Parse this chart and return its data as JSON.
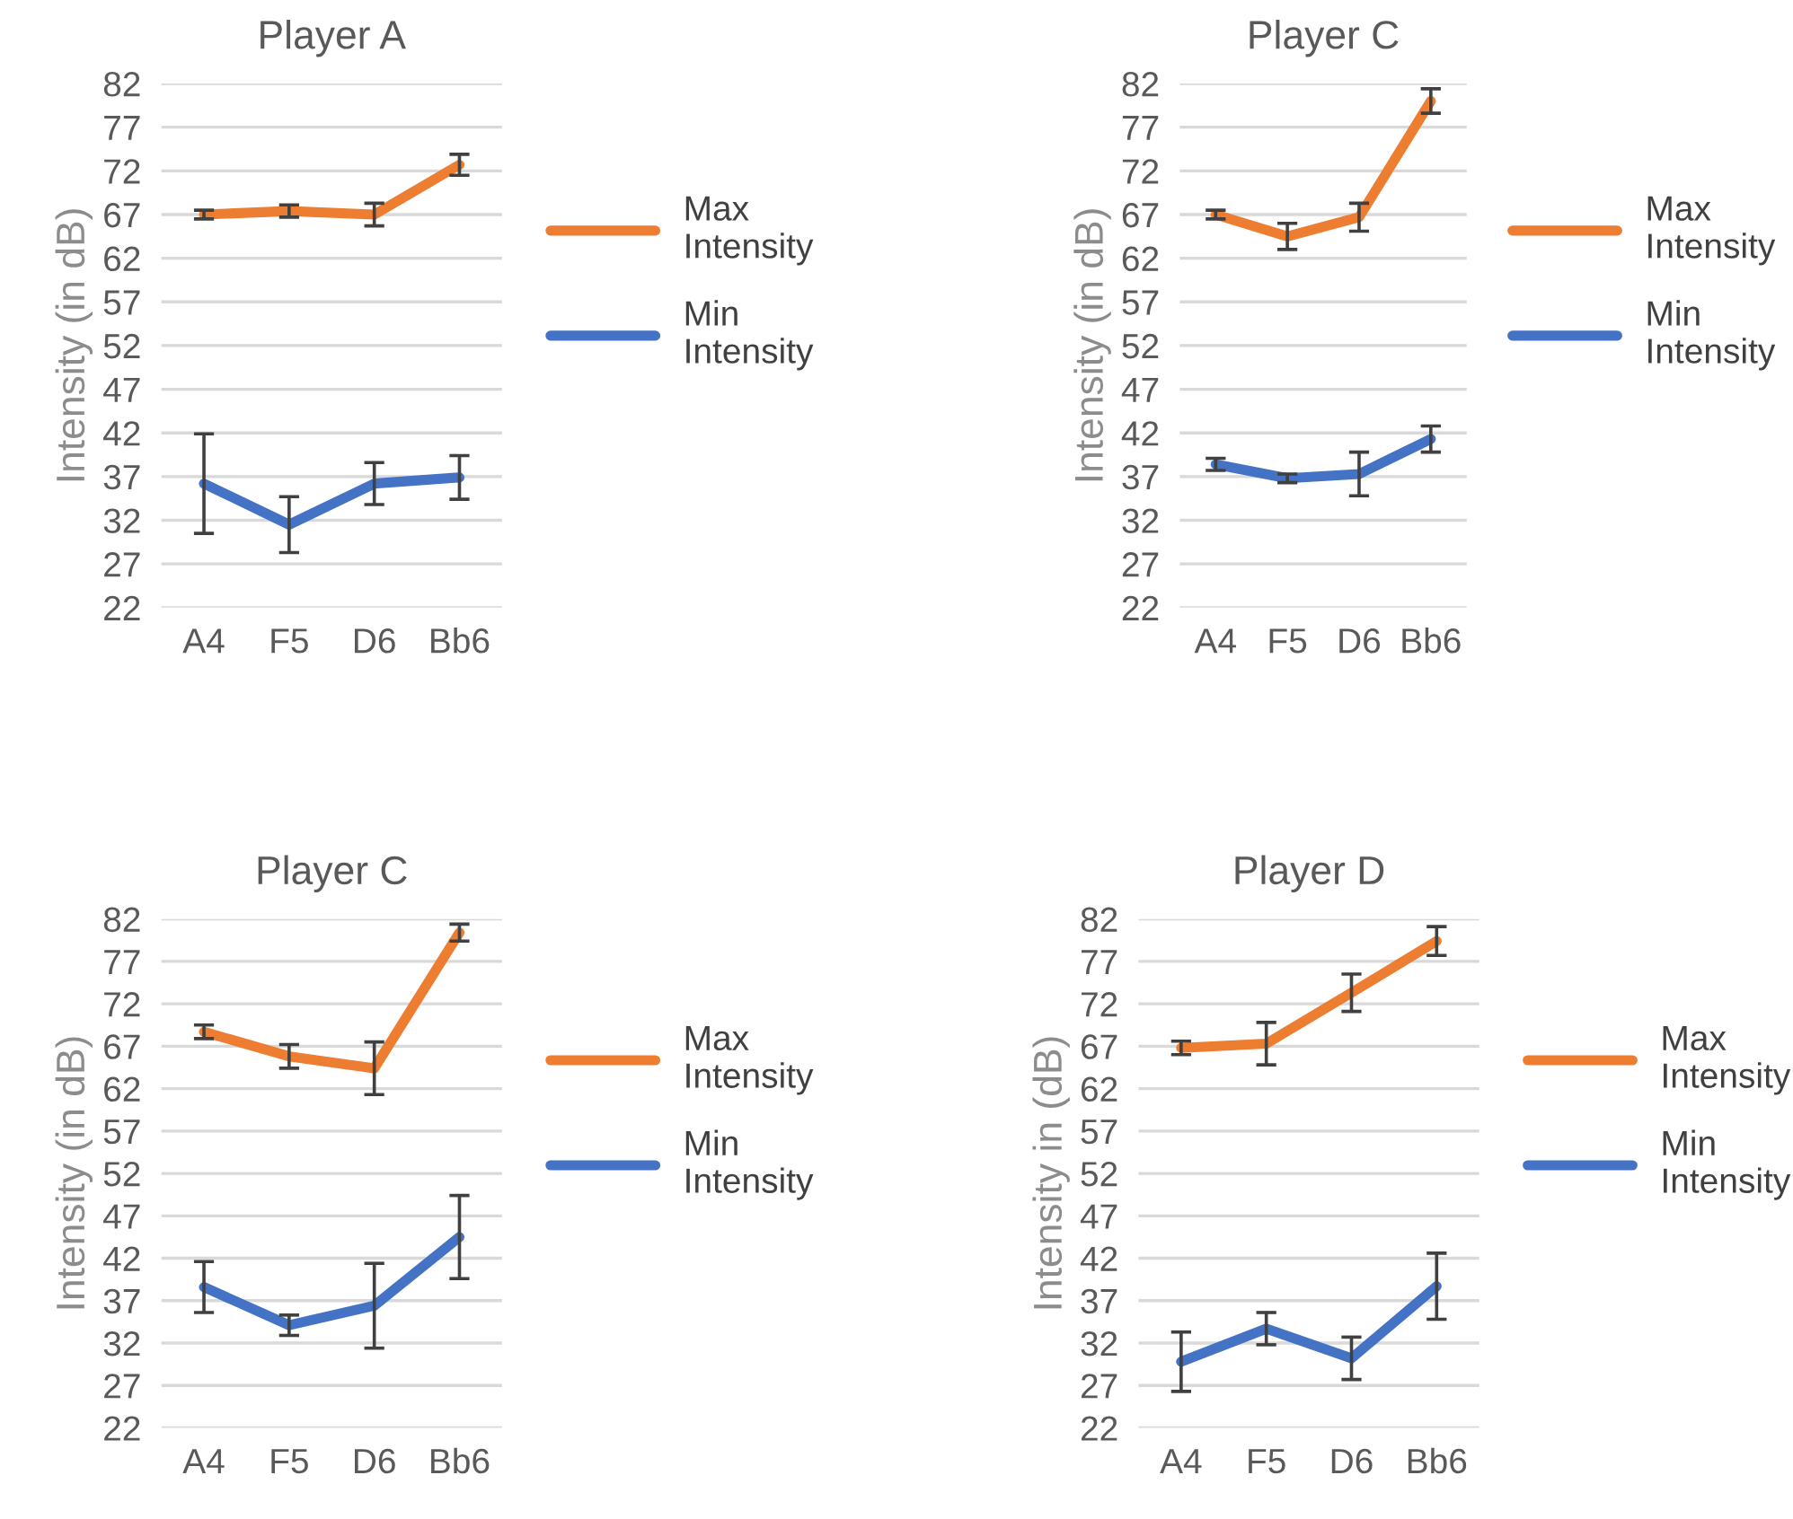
{
  "chart_data": [
    {
      "type": "line",
      "title": "Player A",
      "ylabel": "Intensity (in dB)",
      "categories": [
        "A4",
        "F5",
        "D6",
        "Bb6"
      ],
      "ylim": [
        22,
        82
      ],
      "yticks": [
        22,
        27,
        32,
        37,
        42,
        47,
        52,
        57,
        62,
        67,
        72,
        77,
        82
      ],
      "grid": "y",
      "legend": "right",
      "marker": "none",
      "line_style": "solid",
      "series": [
        {
          "name": "Max Intensity",
          "color": "#ed7d31",
          "values": [
            67.0,
            67.4,
            67.0,
            72.7
          ],
          "errors": [
            0.5,
            0.7,
            1.3,
            1.2
          ]
        },
        {
          "name": "Min Intensity",
          "color": "#4472c4",
          "values": [
            36.2,
            31.5,
            36.2,
            36.9
          ],
          "errors": [
            5.7,
            3.2,
            2.4,
            2.5
          ]
        }
      ]
    },
    {
      "type": "line",
      "title": "Player C",
      "ylabel": "Intensity (in dB)",
      "categories": [
        "A4",
        "F5",
        "D6",
        "Bb6"
      ],
      "ylim": [
        22,
        82
      ],
      "yticks": [
        22,
        27,
        32,
        37,
        42,
        47,
        52,
        57,
        62,
        67,
        72,
        77,
        82
      ],
      "grid": "y",
      "legend": "right",
      "marker": "none",
      "line_style": "solid",
      "series": [
        {
          "name": "Max Intensity",
          "color": "#ed7d31",
          "values": [
            67.0,
            64.5,
            66.7,
            80.0
          ],
          "errors": [
            0.5,
            1.5,
            1.6,
            1.4
          ]
        },
        {
          "name": "Min Intensity",
          "color": "#4472c4",
          "values": [
            38.4,
            36.8,
            37.3,
            41.3
          ],
          "errors": [
            0.7,
            0.5,
            2.5,
            1.5
          ]
        }
      ]
    },
    {
      "type": "line",
      "title": "Player C",
      "ylabel": "Intensity (in dB)",
      "categories": [
        "A4",
        "F5",
        "D6",
        "Bb6"
      ],
      "ylim": [
        22,
        82
      ],
      "yticks": [
        22,
        27,
        32,
        37,
        42,
        47,
        52,
        57,
        62,
        67,
        72,
        77,
        82
      ],
      "grid": "y",
      "legend": "right",
      "marker": "none",
      "line_style": "solid",
      "series": [
        {
          "name": "Max Intensity",
          "color": "#ed7d31",
          "values": [
            68.7,
            65.8,
            64.4,
            80.4
          ],
          "errors": [
            0.8,
            1.4,
            3.1,
            1.0
          ]
        },
        {
          "name": "Min Intensity",
          "color": "#4472c4",
          "values": [
            38.6,
            34.1,
            36.4,
            44.5
          ],
          "errors": [
            3.0,
            1.2,
            5.0,
            4.9
          ]
        }
      ]
    },
    {
      "type": "line",
      "title": "Player D",
      "ylabel": "Intensity in (dB)",
      "categories": [
        "A4",
        "F5",
        "D6",
        "Bb6"
      ],
      "ylim": [
        22,
        82
      ],
      "yticks": [
        22,
        27,
        32,
        37,
        42,
        47,
        52,
        57,
        62,
        67,
        72,
        77,
        82
      ],
      "grid": "y",
      "legend": "right",
      "marker": "none",
      "line_style": "solid",
      "series": [
        {
          "name": "Max Intensity",
          "color": "#ed7d31",
          "values": [
            66.8,
            67.3,
            73.3,
            79.4
          ],
          "errors": [
            0.8,
            2.5,
            2.2,
            1.7
          ]
        },
        {
          "name": "Min Intensity",
          "color": "#4472c4",
          "values": [
            29.8,
            33.7,
            30.2,
            38.7
          ],
          "errors": [
            3.5,
            1.9,
            2.5,
            3.9
          ]
        }
      ]
    }
  ]
}
